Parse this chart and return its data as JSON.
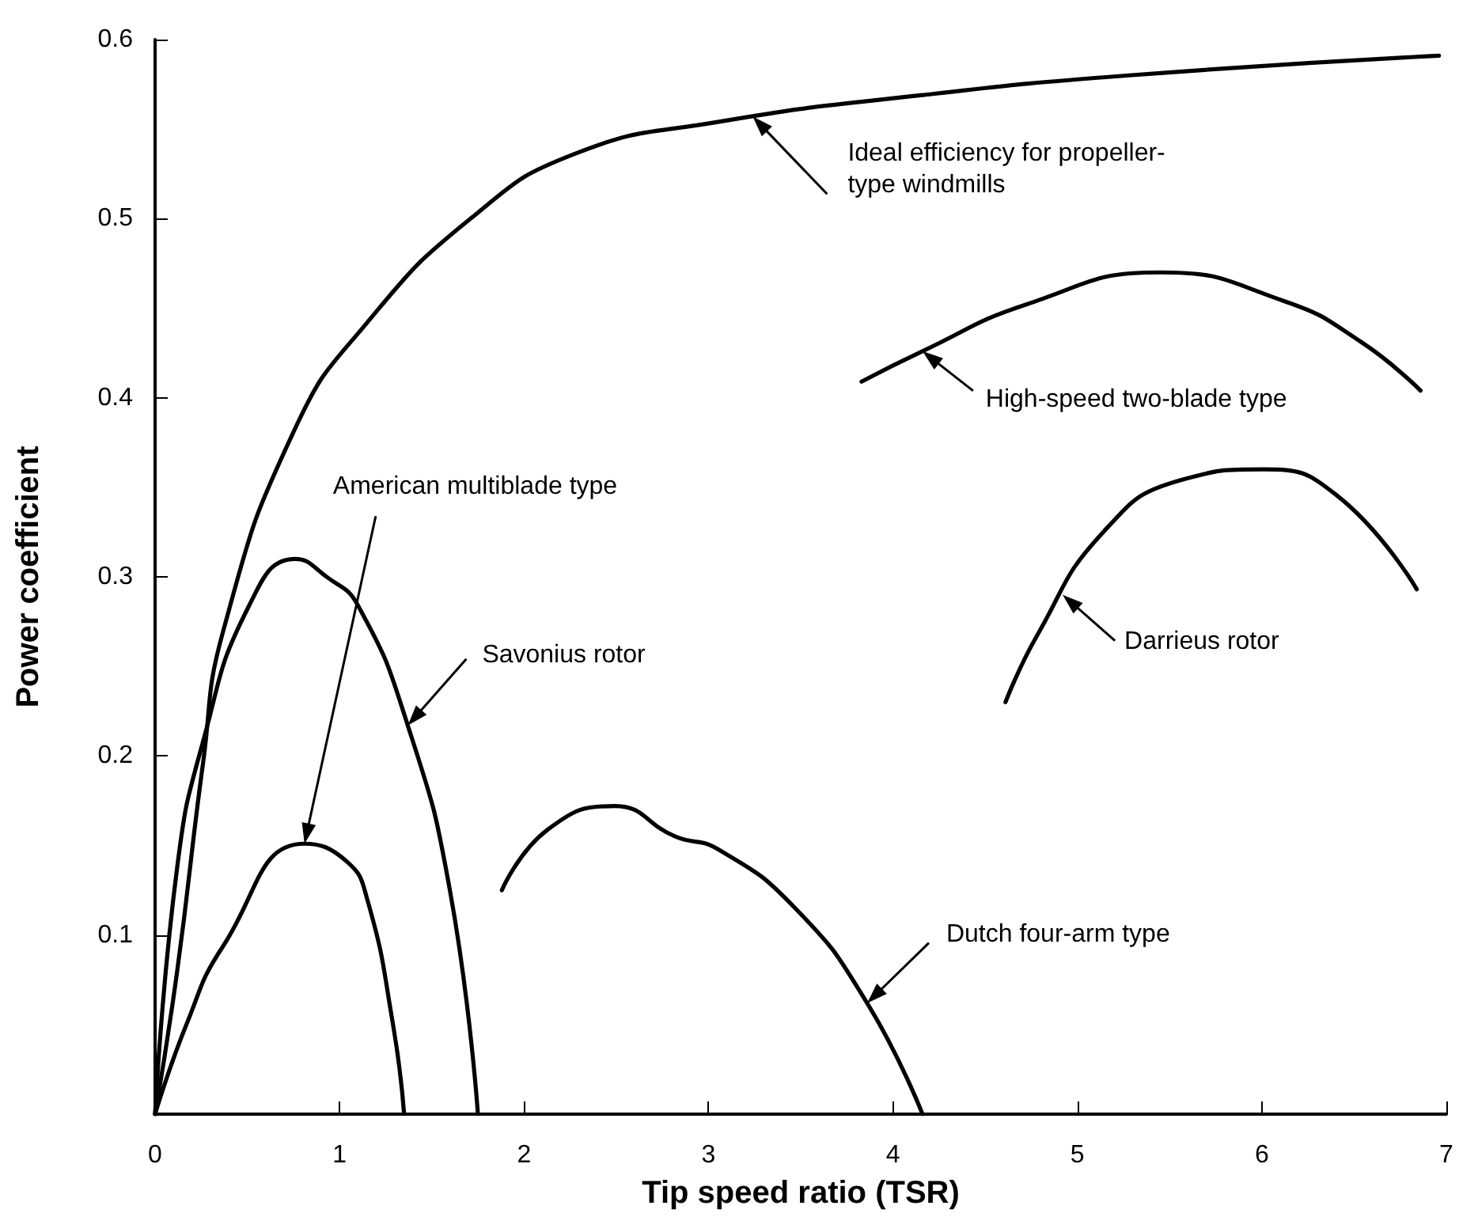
{
  "chart_data": {
    "type": "line",
    "xlabel": "Tip speed ratio (TSR)",
    "ylabel": "Power coefficient",
    "xlim": [
      0,
      7
    ],
    "xticks": [
      0,
      1,
      2,
      3,
      4,
      5,
      6,
      7
    ],
    "ylim": [
      0,
      0.6
    ],
    "yticks": [
      0.1,
      0.2,
      0.3,
      0.4,
      0.5,
      0.6
    ],
    "grid": false,
    "marker": "none",
    "line_style": "solid",
    "series": [
      {
        "color": "#000000",
        "x": [
          0,
          0.12,
          0.26,
          0.37,
          0.76,
          1.15,
          1.71,
          2.27,
          3.05,
          4.16,
          5.28,
          6.96
        ],
        "values": [
          0,
          0.08,
          0.196,
          0.27,
          0.383,
          0.442,
          0.5,
          0.536,
          0.554,
          0.569,
          0.58,
          0.591
        ]
      },
      {
        "color": "#000000",
        "x": [
          0,
          0.12,
          0.26,
          0.51,
          0.76,
          0.93,
          1.1,
          1.37,
          1.6,
          1.75
        ],
        "values": [
          0,
          0.138,
          0.208,
          0.284,
          0.31,
          0.3,
          0.284,
          0.217,
          0.124,
          0
        ]
      },
      {
        "color": "#000000",
        "x": [
          0,
          0.17,
          0.37,
          0.81,
          1.04,
          1.15,
          1.29,
          1.35
        ],
        "values": [
          0,
          0.05,
          0.094,
          0.151,
          0.141,
          0.12,
          0.05,
          0
        ]
      },
      {
        "color": "#000000",
        "x": [
          1.88,
          2.13,
          2.49,
          2.82,
          3.05,
          3.47,
          3.86,
          4.16
        ],
        "values": [
          0.125,
          0.159,
          0.172,
          0.155,
          0.148,
          0.115,
          0.062,
          0
        ]
      },
      {
        "color": "#000000",
        "x": [
          3.83,
          4.16,
          4.72,
          5.45,
          6.12,
          6.54,
          6.86
        ],
        "values": [
          0.409,
          0.426,
          0.452,
          0.47,
          0.454,
          0.431,
          0.404
        ]
      },
      {
        "color": "#000000",
        "x": [
          4.61,
          4.78,
          5.14,
          5.56,
          6.01,
          6.4,
          6.84
        ],
        "values": [
          0.23,
          0.267,
          0.325,
          0.354,
          0.36,
          0.346,
          0.293
        ]
      }
    ],
    "annotations": [
      {
        "text": "Ideal efficiency for propeller-\ntype windmills",
        "x": 3.24,
        "y": 0.557
      },
      {
        "text": "High-speed two-blade type",
        "x": 4.16,
        "y": 0.426
      },
      {
        "text": "Darrieus rotor",
        "x": 4.92,
        "y": 0.29
      },
      {
        "text": "American multiblade type",
        "x": 0.81,
        "y": 0.151
      },
      {
        "text": "Savonius rotor",
        "x": 1.37,
        "y": 0.217
      },
      {
        "text": "Dutch four-arm type",
        "x": 3.86,
        "y": 0.062
      }
    ]
  }
}
